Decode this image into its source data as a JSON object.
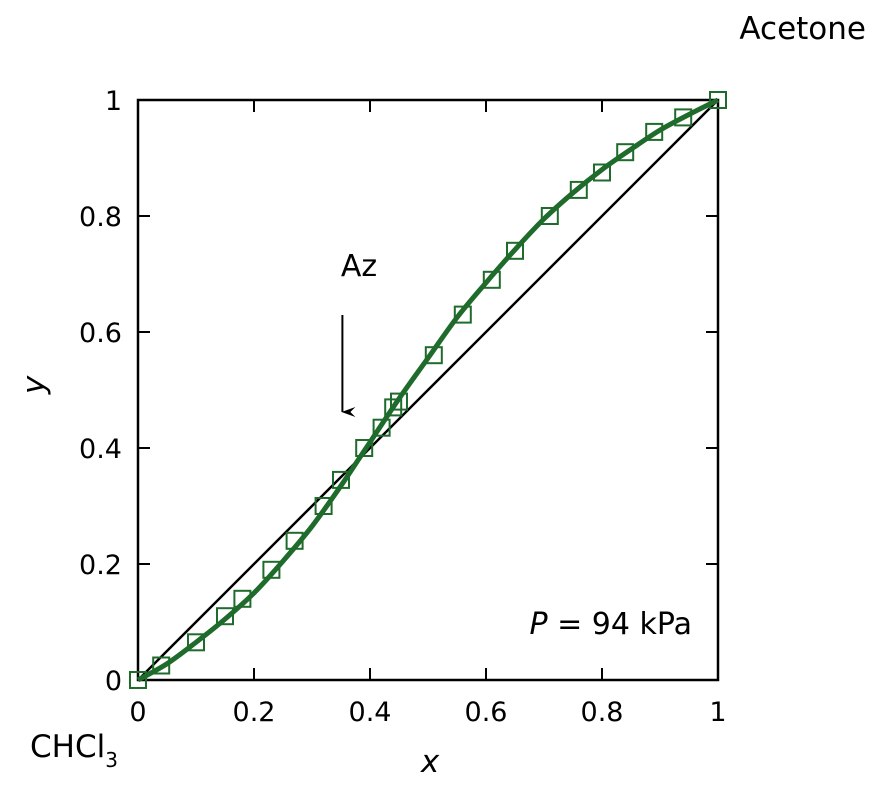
{
  "chart_data": {
    "type": "scatter",
    "xlabel": "x",
    "ylabel": "y",
    "xlim": [
      0,
      1
    ],
    "ylim": [
      0,
      1
    ],
    "x_ticks": [
      "0",
      "0.2",
      "0.4",
      "0.6",
      "0.8",
      "1"
    ],
    "y_ticks": [
      "0",
      "0.2",
      "0.4",
      "0.6",
      "0.8",
      "1"
    ],
    "grid": false,
    "corner_labels": {
      "top_right": "Acetone",
      "bottom_left_main": "CHCl",
      "bottom_left_sub": "3"
    },
    "annotations": {
      "azeotrope_label": "Az",
      "azeotrope_x": 0.38,
      "pressure_var": "P",
      "pressure_text": " = 94 kPa"
    },
    "colors": {
      "series": "#1f6b2c",
      "diagonal": "#000000"
    },
    "series": [
      {
        "marker": "open-square",
        "x": [
          0.0,
          0.04,
          0.1,
          0.15,
          0.18,
          0.23,
          0.27,
          0.32,
          0.35,
          0.39,
          0.42,
          0.44,
          0.45,
          0.51,
          0.56,
          0.61,
          0.65,
          0.71,
          0.76,
          0.8,
          0.84,
          0.89,
          0.94,
          1.0
        ],
        "y": [
          0.0,
          0.025,
          0.065,
          0.11,
          0.14,
          0.19,
          0.24,
          0.3,
          0.345,
          0.4,
          0.435,
          0.47,
          0.48,
          0.56,
          0.63,
          0.69,
          0.74,
          0.8,
          0.845,
          0.875,
          0.91,
          0.945,
          0.97,
          1.0
        ]
      },
      {
        "line": "smooth-fit",
        "x": [
          0.0,
          0.05,
          0.1,
          0.15,
          0.2,
          0.25,
          0.3,
          0.35,
          0.38,
          0.4,
          0.45,
          0.5,
          0.55,
          0.6,
          0.65,
          0.7,
          0.75,
          0.8,
          0.85,
          0.9,
          0.95,
          1.0
        ],
        "y": [
          0.0,
          0.028,
          0.065,
          0.105,
          0.15,
          0.205,
          0.265,
          0.335,
          0.38,
          0.41,
          0.485,
          0.555,
          0.625,
          0.685,
          0.742,
          0.795,
          0.84,
          0.88,
          0.915,
          0.948,
          0.975,
          1.0
        ]
      }
    ]
  }
}
